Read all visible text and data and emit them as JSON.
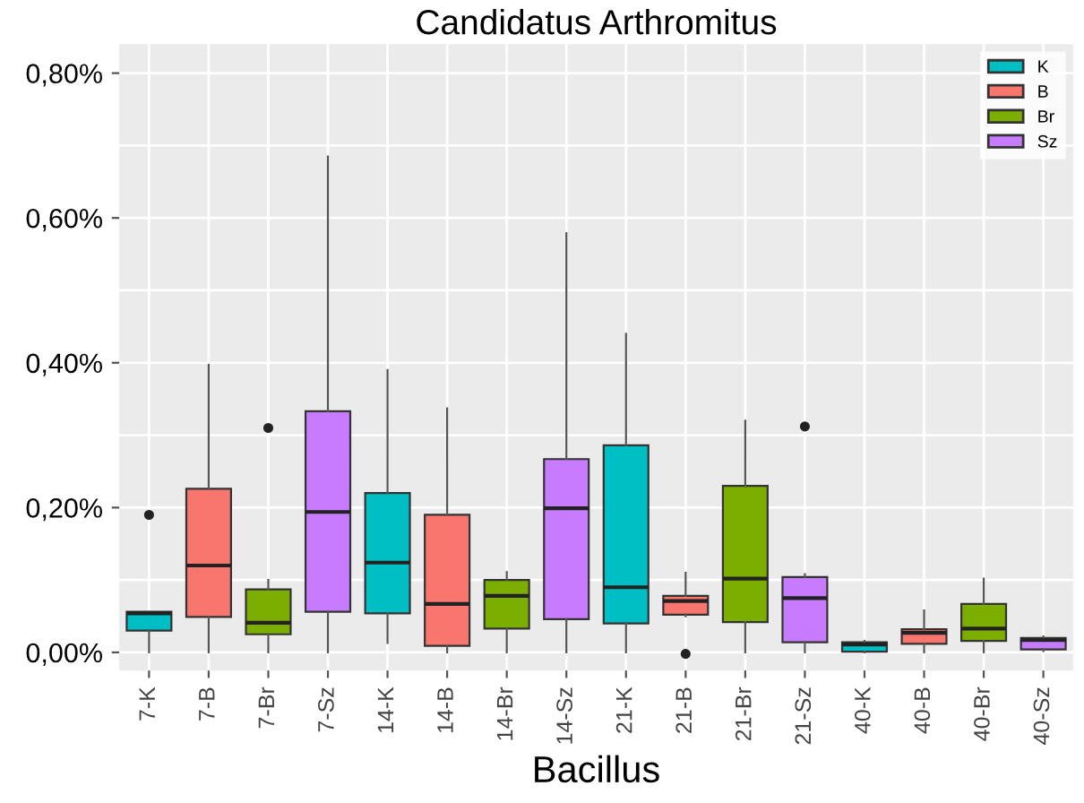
{
  "chart_data": {
    "type": "box",
    "title": "Candidatus Arthromitus",
    "xlabel": "Bacillus",
    "categories": [
      "7-K",
      "7-B",
      "7-Br",
      "7-Sz",
      "14-K",
      "14-B",
      "14-Br",
      "14-Sz",
      "21-K",
      "21-B",
      "21-Br",
      "21-Sz",
      "40-K",
      "40-B",
      "40-Br",
      "40-Sz"
    ],
    "series": [
      {
        "name": "K",
        "color": "#00bfc4",
        "boxes": [
          {
            "low": 0,
            "q1": 0.03,
            "median": 0.054,
            "q3": 0.056,
            "high": 0.056,
            "outliers": [
              0.19
            ]
          },
          null,
          null,
          null,
          {
            "low": 0.013,
            "q1": 0.054,
            "median": 0.124,
            "q3": 0.22,
            "high": 0.39
          },
          null,
          null,
          null,
          {
            "low": 0,
            "q1": 0.04,
            "median": 0.09,
            "q3": 0.286,
            "high": 0.44
          },
          null,
          null,
          null,
          {
            "low": 0,
            "q1": 0.001,
            "median": 0.011,
            "q3": 0.014,
            "high": 0.016
          },
          null,
          null,
          null
        ]
      },
      {
        "name": "B",
        "color": "#f8766d",
        "boxes": [
          null,
          {
            "low": 0,
            "q1": 0.049,
            "median": 0.12,
            "q3": 0.226,
            "high": 0.397
          },
          null,
          null,
          null,
          {
            "low": 0,
            "q1": 0.009,
            "median": 0.067,
            "q3": 0.19,
            "high": 0.337
          },
          null,
          null,
          null,
          {
            "low": 0.05,
            "q1": 0.052,
            "median": 0.071,
            "q3": 0.078,
            "high": 0.11,
            "outliers": [
              -0.002
            ]
          },
          null,
          null,
          null,
          {
            "low": 0,
            "q1": 0.012,
            "median": 0.027,
            "q3": 0.032,
            "high": 0.058
          },
          null,
          null
        ]
      },
      {
        "name": "Br",
        "color": "#7cae00",
        "boxes": [
          null,
          null,
          {
            "low": 0,
            "q1": 0.025,
            "median": 0.041,
            "q3": 0.087,
            "high": 0.1,
            "outliers": [
              0.31
            ]
          },
          null,
          null,
          null,
          {
            "low": 0,
            "q1": 0.033,
            "median": 0.078,
            "q3": 0.1,
            "high": 0.111
          },
          null,
          null,
          null,
          {
            "low": 0,
            "q1": 0.042,
            "median": 0.102,
            "q3": 0.23,
            "high": 0.32
          },
          null,
          null,
          null,
          {
            "low": 0,
            "q1": 0.016,
            "median": 0.033,
            "q3": 0.067,
            "high": 0.102
          },
          null
        ]
      },
      {
        "name": "Sz",
        "color": "#c77cff",
        "boxes": [
          null,
          null,
          null,
          {
            "low": 0,
            "q1": 0.056,
            "median": 0.194,
            "q3": 0.333,
            "high": 0.685
          },
          null,
          null,
          null,
          {
            "low": 0,
            "q1": 0.046,
            "median": 0.199,
            "q3": 0.267,
            "high": 0.579
          },
          null,
          null,
          null,
          {
            "low": 0,
            "q1": 0.014,
            "median": 0.075,
            "q3": 0.104,
            "high": 0.108,
            "outliers": [
              0.312
            ]
          },
          null,
          null,
          null,
          {
            "low": 0.002,
            "q1": 0.004,
            "median": 0.017,
            "q3": 0.02,
            "high": 0.022
          }
        ]
      }
    ],
    "ylim": [
      -0.025,
      0.84
    ],
    "yticks": [
      {
        "value": 0,
        "label": "0,00%"
      },
      {
        "value": 0.1,
        "label": null
      },
      {
        "value": 0.2,
        "label": "0,20%"
      },
      {
        "value": 0.3,
        "label": null
      },
      {
        "value": 0.4,
        "label": "0,40%"
      },
      {
        "value": 0.5,
        "label": null
      },
      {
        "value": 0.6,
        "label": "0,60%"
      },
      {
        "value": 0.7,
        "label": null
      },
      {
        "value": 0.8,
        "label": "0,80%"
      }
    ],
    "grid": true,
    "legend": "top right"
  }
}
